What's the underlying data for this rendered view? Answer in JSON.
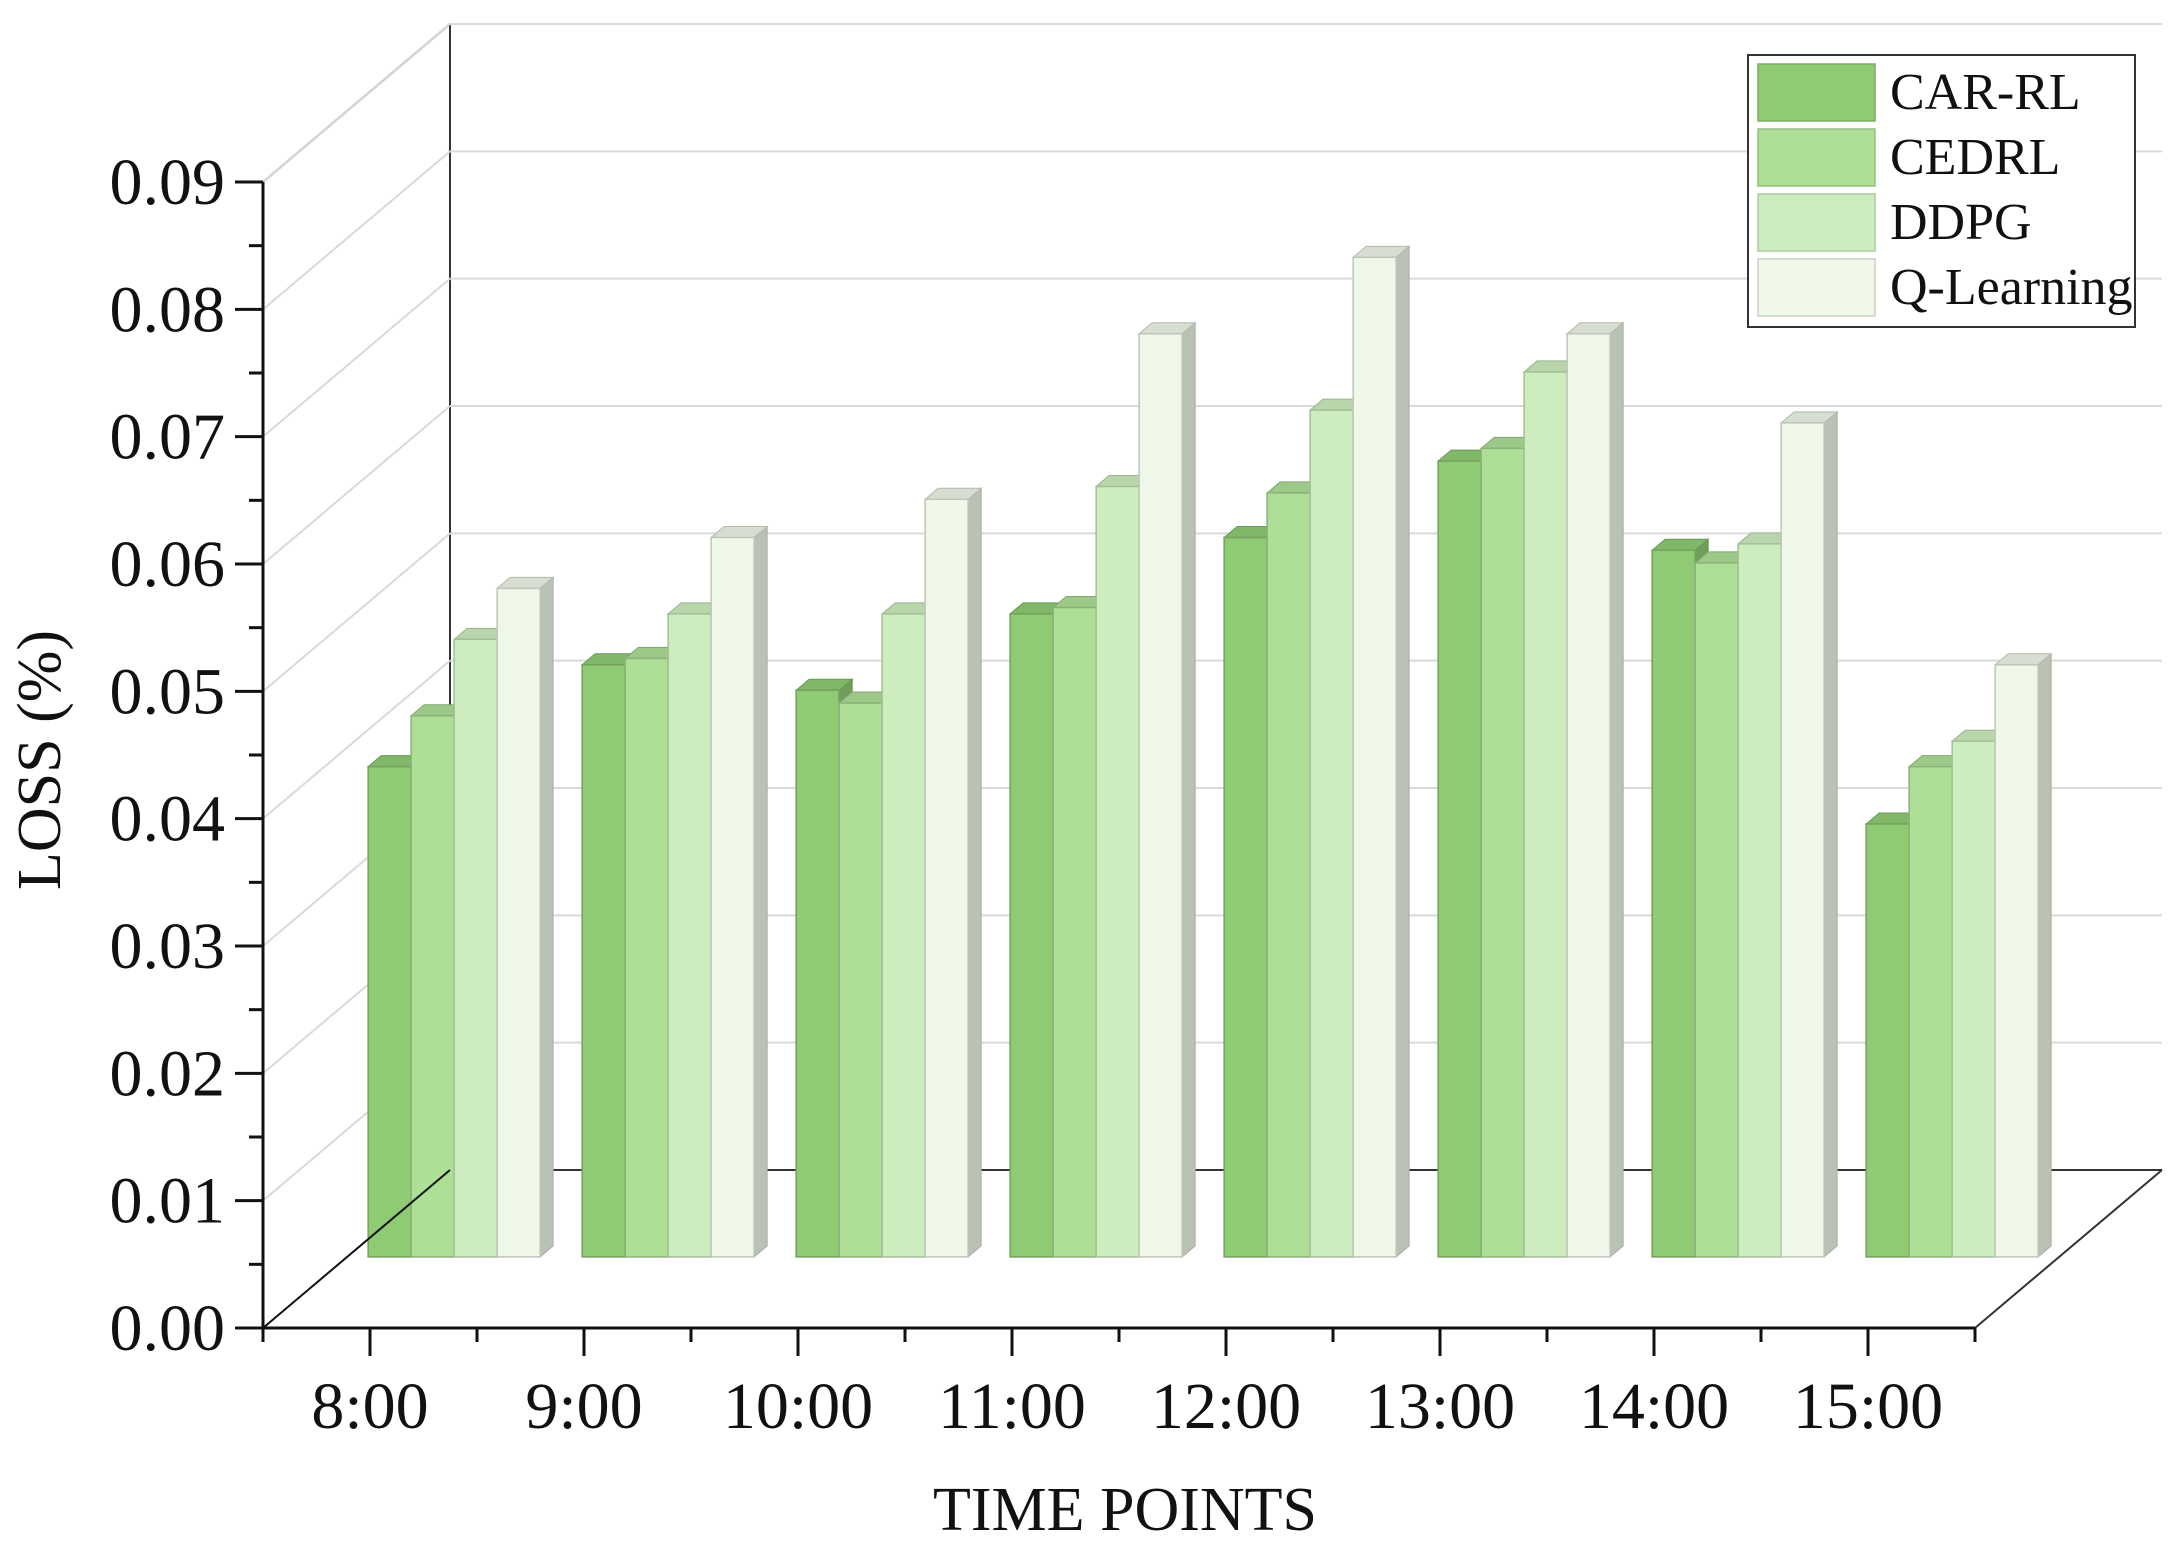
{
  "chart_data": {
    "type": "bar",
    "xlabel": "TIME POINTS",
    "ylabel": "LOSS (%)",
    "ylim": [
      0,
      0.09
    ],
    "yticks": [
      "0.00",
      "0.01",
      "0.02",
      "0.03",
      "0.04",
      "0.05",
      "0.06",
      "0.07",
      "0.08",
      "0.09"
    ],
    "categories": [
      "8:00",
      "9:00",
      "10:00",
      "11:00",
      "12:00",
      "13:00",
      "14:00",
      "15:00"
    ],
    "grid": true,
    "legend_position": "top-right",
    "series": [
      {
        "name": "CAR-RL",
        "color": "#8fcb73",
        "values": [
          0.0385,
          0.0465,
          0.0445,
          0.0505,
          0.0565,
          0.0625,
          0.0555,
          0.034
        ]
      },
      {
        "name": "CEDRL",
        "color": "#addf96",
        "values": [
          0.0425,
          0.047,
          0.0435,
          0.051,
          0.06,
          0.0635,
          0.0545,
          0.0385
        ]
      },
      {
        "name": "DDPG",
        "color": "#cdedbe",
        "values": [
          0.0485,
          0.0505,
          0.0505,
          0.0605,
          0.0665,
          0.0695,
          0.056,
          0.0405
        ]
      },
      {
        "name": "Q-Learning",
        "color": "#eef7e8",
        "values": [
          0.0525,
          0.0565,
          0.0595,
          0.0725,
          0.0785,
          0.0725,
          0.0655,
          0.0465
        ]
      }
    ]
  }
}
